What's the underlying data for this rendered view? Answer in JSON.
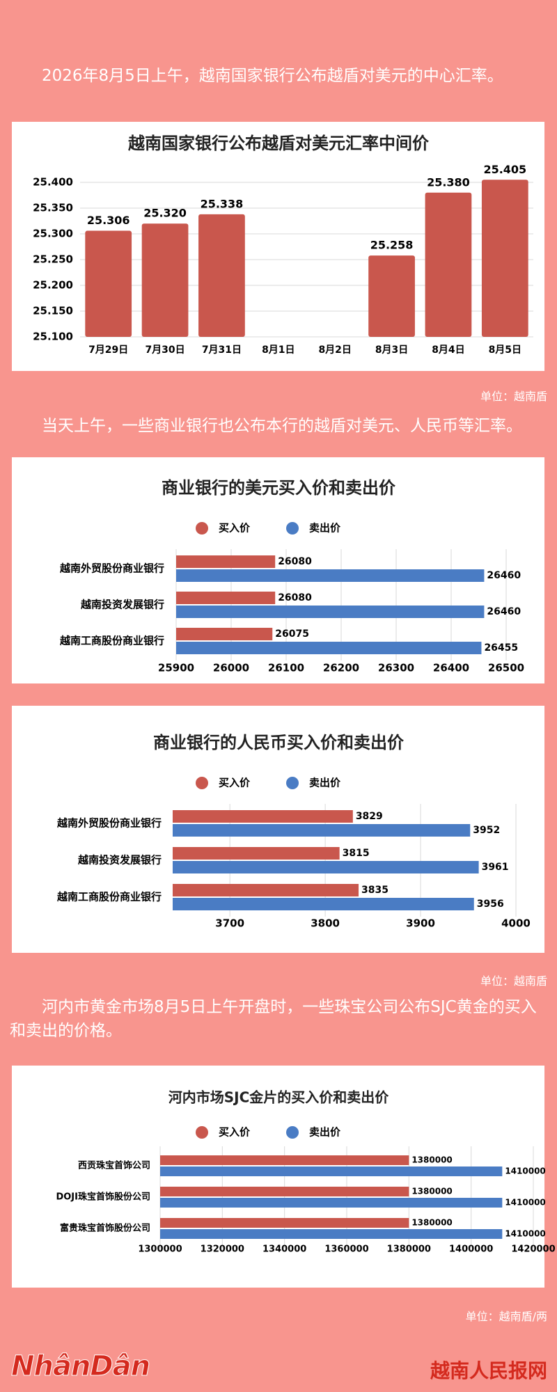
{
  "paragraphs": [
    "2026年8月5日上午，越南国家银行公布越盾对美元的中心汇率。",
    "当天上午，一些商业银行也公布本行的越盾对美元、人民币等汇率。",
    "河内市黄金市场8月5日上午开盘时，一些珠宝公司公布SJC黄金的买入和卖出的价格。"
  ],
  "units": [
    "单位：越南盾",
    "单位：越南盾",
    "单位：越南盾/两"
  ],
  "footer": {
    "logo": "NhânDân",
    "site": "越南人民报网"
  },
  "chart_data": [
    {
      "type": "bar",
      "title": "越南国家银行公布越盾对美元汇率中间价",
      "categories": [
        "7月29日",
        "7月30日",
        "7月31日",
        "8月1日",
        "8月2日",
        "8月3日",
        "8月4日",
        "8月5日"
      ],
      "values": [
        25.306,
        25.32,
        25.338,
        null,
        null,
        25.258,
        25.38,
        25.405
      ],
      "value_labels": [
        "25.306",
        "25.320",
        "25.338",
        null,
        null,
        "25.258",
        "25.380",
        "25.405"
      ],
      "color": "#c9574d",
      "ylim": [
        25.1,
        25.4
      ],
      "yticks": [
        {
          "value": 25.1,
          "label": "25.100"
        },
        {
          "value": 25.15,
          "label": "25.150"
        },
        {
          "value": 25.2,
          "label": "25.200"
        },
        {
          "value": 25.25,
          "label": "25.250"
        },
        {
          "value": 25.3,
          "label": "25.300"
        },
        {
          "value": 25.35,
          "label": "25.350"
        },
        {
          "value": 25.4,
          "label": "25.400"
        }
      ],
      "grid": true
    },
    {
      "type": "hbar",
      "title": "商业银行的美元买入价和卖出价",
      "categories": [
        "越南外贸股份商业银行",
        "越南投资发展银行",
        "越南工商股份商业银行"
      ],
      "series": [
        {
          "name": "买入价",
          "color": "#c9574d",
          "values": [
            26080,
            26080,
            26075
          ]
        },
        {
          "name": "卖出价",
          "color": "#4a7cc4",
          "values": [
            26460,
            26460,
            26455
          ]
        }
      ],
      "xlim": [
        25900,
        26500
      ],
      "xticks": [
        25900,
        26000,
        26100,
        26200,
        26300,
        26400,
        26500
      ],
      "grid": true
    },
    {
      "type": "hbar",
      "title": "商业银行的人民币买入价和卖出价",
      "categories": [
        "越南外贸股份商业银行",
        "越南投资发展银行",
        "越南工商股份商业银行"
      ],
      "series": [
        {
          "name": "买入价",
          "color": "#c9574d",
          "values": [
            3829,
            3815,
            3835
          ]
        },
        {
          "name": "卖出价",
          "color": "#4a7cc4",
          "values": [
            3952,
            3961,
            3956
          ]
        }
      ],
      "xlim": [
        3640,
        4000
      ],
      "xticks": [
        3700,
        3800,
        3900,
        4000
      ],
      "grid": true
    },
    {
      "type": "hbar",
      "title": "河内市场SJC金片的买入价和卖出价",
      "categories": [
        "西贡珠宝首饰公司",
        "DOJI珠宝首饰股份公司",
        "富贵珠宝首饰股份公司"
      ],
      "series": [
        {
          "name": "买入价",
          "color": "#c9574d",
          "values": [
            1380000,
            1380000,
            1380000
          ]
        },
        {
          "name": "卖出价",
          "color": "#4a7cc4",
          "values": [
            1410000,
            1410000,
            1410000
          ]
        }
      ],
      "xlim": [
        1300000,
        1420000
      ],
      "xticks": [
        1300000,
        1320000,
        1340000,
        1360000,
        1380000,
        1400000,
        1420000
      ],
      "grid": true
    }
  ]
}
